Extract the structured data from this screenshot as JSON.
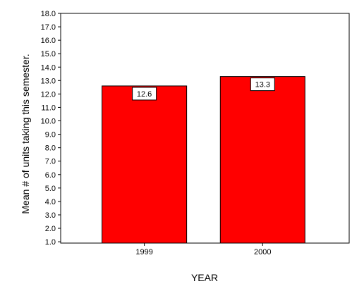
{
  "chart_data": {
    "type": "bar",
    "title": "",
    "xlabel": "YEAR",
    "ylabel": "Mean # of units taking this semester.",
    "categories": [
      "1999",
      "2000"
    ],
    "values": [
      12.6,
      13.3
    ],
    "data_labels": [
      "12.6",
      "13.3"
    ],
    "ylim": [
      0.9,
      18.0
    ],
    "yticks": [
      "1.0",
      "2.0",
      "3.0",
      "4.0",
      "5.0",
      "6.0",
      "7.0",
      "8.0",
      "9.0",
      "10.0",
      "11.0",
      "12.0",
      "13.0",
      "14.0",
      "15.0",
      "16.0",
      "17.0",
      "18.0"
    ],
    "grid": false,
    "legend": "none",
    "bar_color": "#ff0000",
    "bar_edge_color": "#000000"
  }
}
